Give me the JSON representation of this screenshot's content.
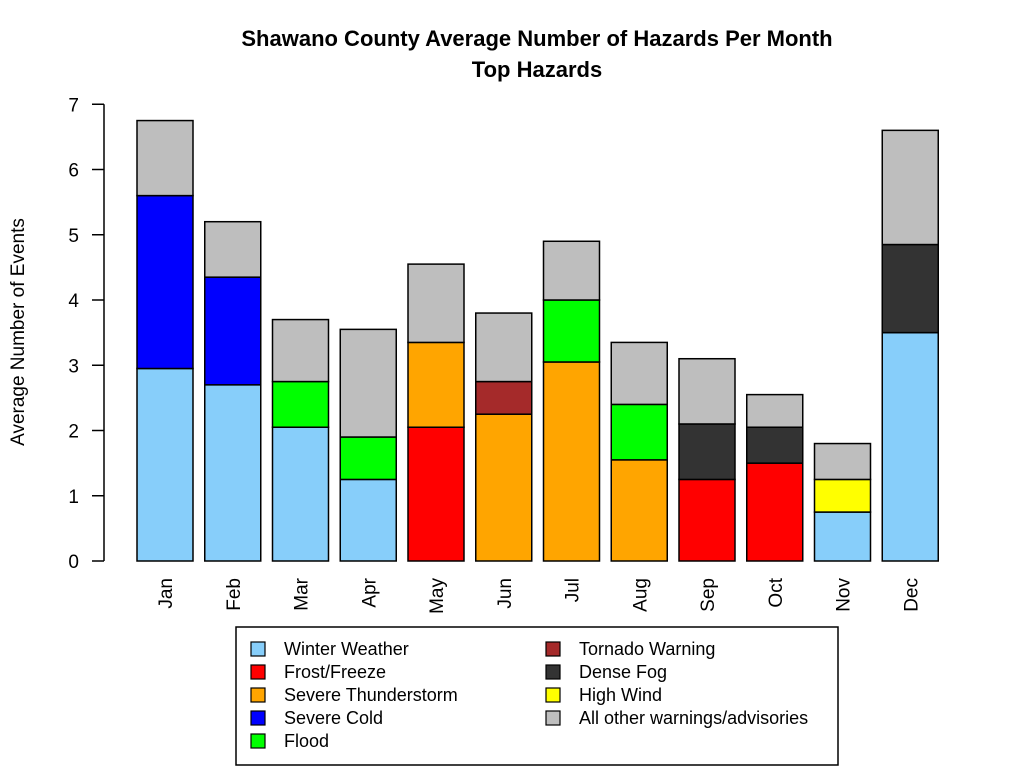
{
  "chart_data": {
    "type": "bar",
    "stacked": true,
    "title": "Shawano County Average Number of Hazards Per Month",
    "subtitle": "Top Hazards",
    "xlabel": "",
    "ylabel": "Average Number of Events",
    "ylim": [
      0,
      7
    ],
    "yticks": [
      0,
      1,
      2,
      3,
      4,
      5,
      6,
      7
    ],
    "grid": false,
    "legend_position": "bottom",
    "categories": [
      "Jan",
      "Feb",
      "Mar",
      "Apr",
      "May",
      "Jun",
      "Jul",
      "Aug",
      "Sep",
      "Oct",
      "Nov",
      "Dec"
    ],
    "series": [
      {
        "name": "Winter Weather",
        "color": "#87CEFA",
        "values": [
          2.95,
          2.7,
          2.05,
          1.25,
          0,
          0,
          0,
          0,
          0,
          0,
          0.75,
          3.5
        ]
      },
      {
        "name": "Frost/Freeze",
        "color": "#FF0000",
        "values": [
          0,
          0,
          0,
          0,
          2.05,
          0,
          0,
          0,
          1.25,
          1.5,
          0,
          0
        ]
      },
      {
        "name": "Severe Thunderstorm",
        "color": "#FFA500",
        "values": [
          0,
          0,
          0,
          0,
          1.3,
          2.25,
          3.05,
          1.55,
          0,
          0,
          0,
          0
        ]
      },
      {
        "name": "Severe Cold",
        "color": "#0000FF",
        "values": [
          2.65,
          1.65,
          0,
          0,
          0,
          0,
          0,
          0,
          0,
          0,
          0,
          0
        ]
      },
      {
        "name": "Flood",
        "color": "#00FF00",
        "values": [
          0,
          0,
          0.7,
          0.65,
          0,
          0,
          0.95,
          0.85,
          0,
          0,
          0,
          0
        ]
      },
      {
        "name": "Tornado Warning",
        "color": "#A52A2A",
        "values": [
          0,
          0,
          0,
          0,
          0,
          0.5,
          0,
          0,
          0,
          0,
          0,
          0
        ]
      },
      {
        "name": "Dense Fog",
        "color": "#333333",
        "values": [
          0,
          0,
          0,
          0,
          0,
          0,
          0,
          0,
          0.85,
          0.55,
          0,
          1.35
        ]
      },
      {
        "name": "High Wind",
        "color": "#FFFF00",
        "values": [
          0,
          0,
          0,
          0,
          0,
          0,
          0,
          0,
          0,
          0,
          0.5,
          0
        ]
      },
      {
        "name": "All other warnings/advisories",
        "color": "#BEBEBE",
        "values": [
          1.15,
          0.85,
          0.95,
          1.65,
          1.2,
          1.05,
          0.9,
          0.95,
          1.0,
          0.5,
          0.55,
          1.75
        ]
      }
    ]
  }
}
